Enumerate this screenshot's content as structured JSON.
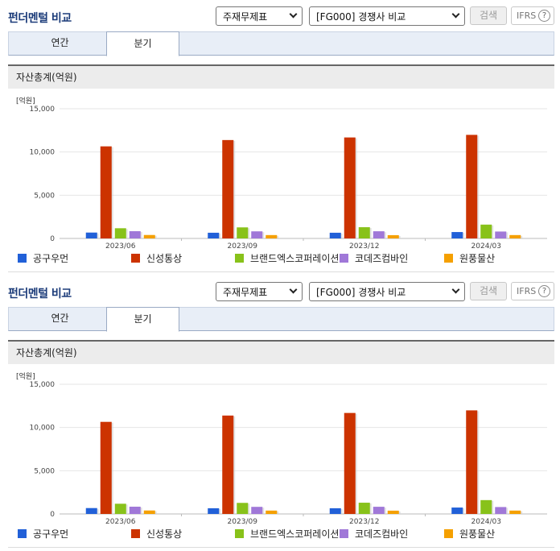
{
  "panels": [
    {
      "title": "펀더멘털 비교",
      "select_type": "주재무제표",
      "select_compare": "[FG000] 경쟁사 비교",
      "search_label": "검색",
      "ifrs_label": "IFRS",
      "help_label": "?",
      "tabs": [
        {
          "label": "연간"
        },
        {
          "label": "분기"
        }
      ],
      "chart_title": "자산총계(억원)",
      "unit": "[억원]"
    },
    {
      "title": "펀더멘털 비교",
      "select_type": "주재무제표",
      "select_compare": "[FG000] 경쟁사 비교",
      "search_label": "검색",
      "ifrs_label": "IFRS",
      "help_label": "?",
      "tabs": [
        {
          "label": "연간"
        },
        {
          "label": "분기"
        }
      ],
      "chart_title": "자산총계(억원)",
      "unit": "[억원]"
    }
  ],
  "colors": {
    "title": "#1c3c7a",
    "series": [
      "#2160d8",
      "#cc3300",
      "#88c21a",
      "#a078d8",
      "#f5a000"
    ]
  },
  "chart_data": [
    {
      "type": "bar",
      "title": "자산총계(억원)",
      "ylabel": "[억원]",
      "ylim": [
        0,
        15000
      ],
      "yticks": [
        "0",
        "5,000",
        "10,000",
        "15,000"
      ],
      "categories": [
        "2023/06",
        "2023/09",
        "2023/12",
        "2024/03"
      ],
      "grid": true,
      "legend_position": "bottom",
      "series": [
        {
          "name": "공구우먼",
          "values": [
            680,
            660,
            660,
            740
          ]
        },
        {
          "name": "신성통상",
          "values": [
            10650,
            11380,
            11680,
            11980
          ]
        },
        {
          "name": "브랜드엑스코퍼레이션",
          "values": [
            1180,
            1280,
            1300,
            1600
          ]
        },
        {
          "name": "코데즈컴바인",
          "values": [
            840,
            820,
            830,
            800
          ]
        },
        {
          "name": "원풍물산",
          "values": [
            400,
            390,
            380,
            390
          ]
        }
      ]
    },
    {
      "type": "bar",
      "title": "자산총계(억원)",
      "ylabel": "[억원]",
      "ylim": [
        0,
        15000
      ],
      "yticks": [
        "0",
        "5,000",
        "10,000",
        "15,000"
      ],
      "categories": [
        "2023/06",
        "2023/09",
        "2023/12",
        "2024/03"
      ],
      "grid": true,
      "legend_position": "bottom",
      "series": [
        {
          "name": "공구우먼",
          "values": [
            680,
            660,
            660,
            740
          ]
        },
        {
          "name": "신성통상",
          "values": [
            10650,
            11380,
            11680,
            11980
          ]
        },
        {
          "name": "브랜드엑스코퍼레이션",
          "values": [
            1180,
            1280,
            1300,
            1600
          ]
        },
        {
          "name": "코데즈컴바인",
          "values": [
            840,
            820,
            830,
            800
          ]
        },
        {
          "name": "원풍물산",
          "values": [
            400,
            390,
            380,
            390
          ]
        }
      ]
    }
  ]
}
